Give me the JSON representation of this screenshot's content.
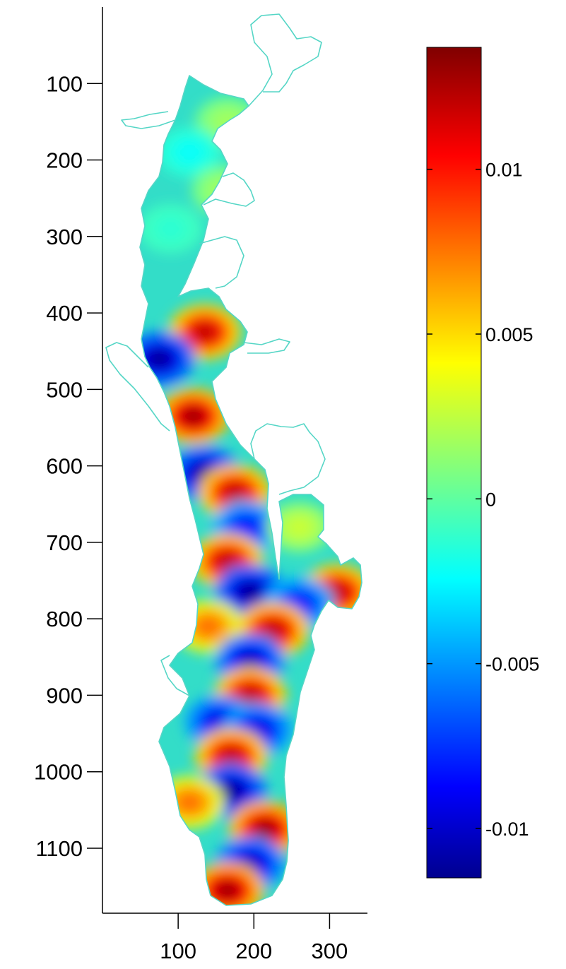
{
  "chart_data": [
    {
      "type": "heatmap",
      "description_type": "spatial mode map",
      "title": "",
      "xlabel": "",
      "ylabel": "",
      "xlim": [
        0,
        350
      ],
      "ylim": [
        1185,
        0
      ],
      "x_ticks": [
        100,
        200,
        300
      ],
      "x_tick_labels": [
        "100",
        "200",
        "300"
      ],
      "y_ticks": [
        100,
        200,
        300,
        400,
        500,
        600,
        700,
        800,
        900,
        1000,
        1100
      ],
      "y_tick_labels": [
        "100",
        "200",
        "300",
        "400",
        "500",
        "600",
        "700",
        "800",
        "900",
        "1000",
        "1100"
      ],
      "y_axis_reversed": true,
      "grid": false,
      "colormap": "jet",
      "colorbar": {
        "placement": "right",
        "range": [
          -0.0115,
          0.0137
        ],
        "ticks": [
          0.01,
          0.005,
          0,
          -0.005,
          -0.01
        ],
        "tick_labels": [
          "0.01",
          "0.005",
          "0",
          "-0.005",
          "-0.01"
        ]
      },
      "extrema": [
        {
          "kind": "max",
          "x": 165,
          "y": 150,
          "value": 0.002
        },
        {
          "kind": "min",
          "x": 115,
          "y": 190,
          "value": -0.002
        },
        {
          "kind": "max",
          "x": 160,
          "y": 240,
          "value": 0.002
        },
        {
          "kind": "min",
          "x": 90,
          "y": 290,
          "value": -0.001
        },
        {
          "kind": "max",
          "x": 135,
          "y": 425,
          "value": 0.012
        },
        {
          "kind": "min",
          "x": 75,
          "y": 460,
          "value": -0.011
        },
        {
          "kind": "max",
          "x": 120,
          "y": 535,
          "value": 0.013
        },
        {
          "kind": "min",
          "x": 135,
          "y": 610,
          "value": -0.011
        },
        {
          "kind": "max",
          "x": 175,
          "y": 635,
          "value": 0.012
        },
        {
          "kind": "min",
          "x": 190,
          "y": 680,
          "value": -0.008
        },
        {
          "kind": "max",
          "x": 165,
          "y": 725,
          "value": 0.012
        },
        {
          "kind": "max",
          "x": 260,
          "y": 680,
          "value": 0.003
        },
        {
          "kind": "min",
          "x": 195,
          "y": 765,
          "value": -0.011
        },
        {
          "kind": "max",
          "x": 310,
          "y": 765,
          "value": 0.012
        },
        {
          "kind": "min",
          "x": 260,
          "y": 780,
          "value": -0.008
        },
        {
          "kind": "max",
          "x": 140,
          "y": 810,
          "value": 0.008
        },
        {
          "kind": "max",
          "x": 225,
          "y": 815,
          "value": 0.012
        },
        {
          "kind": "min",
          "x": 195,
          "y": 855,
          "value": -0.01
        },
        {
          "kind": "max",
          "x": 195,
          "y": 900,
          "value": 0.012
        },
        {
          "kind": "min",
          "x": 155,
          "y": 935,
          "value": -0.009
        },
        {
          "kind": "min",
          "x": 205,
          "y": 945,
          "value": -0.009
        },
        {
          "kind": "max",
          "x": 170,
          "y": 980,
          "value": 0.012
        },
        {
          "kind": "min",
          "x": 170,
          "y": 1025,
          "value": -0.011
        },
        {
          "kind": "max",
          "x": 115,
          "y": 1040,
          "value": 0.008
        },
        {
          "kind": "max",
          "x": 215,
          "y": 1075,
          "value": 0.013
        },
        {
          "kind": "min",
          "x": 195,
          "y": 1120,
          "value": -0.01
        },
        {
          "kind": "max",
          "x": 165,
          "y": 1155,
          "value": 0.013
        }
      ]
    }
  ]
}
